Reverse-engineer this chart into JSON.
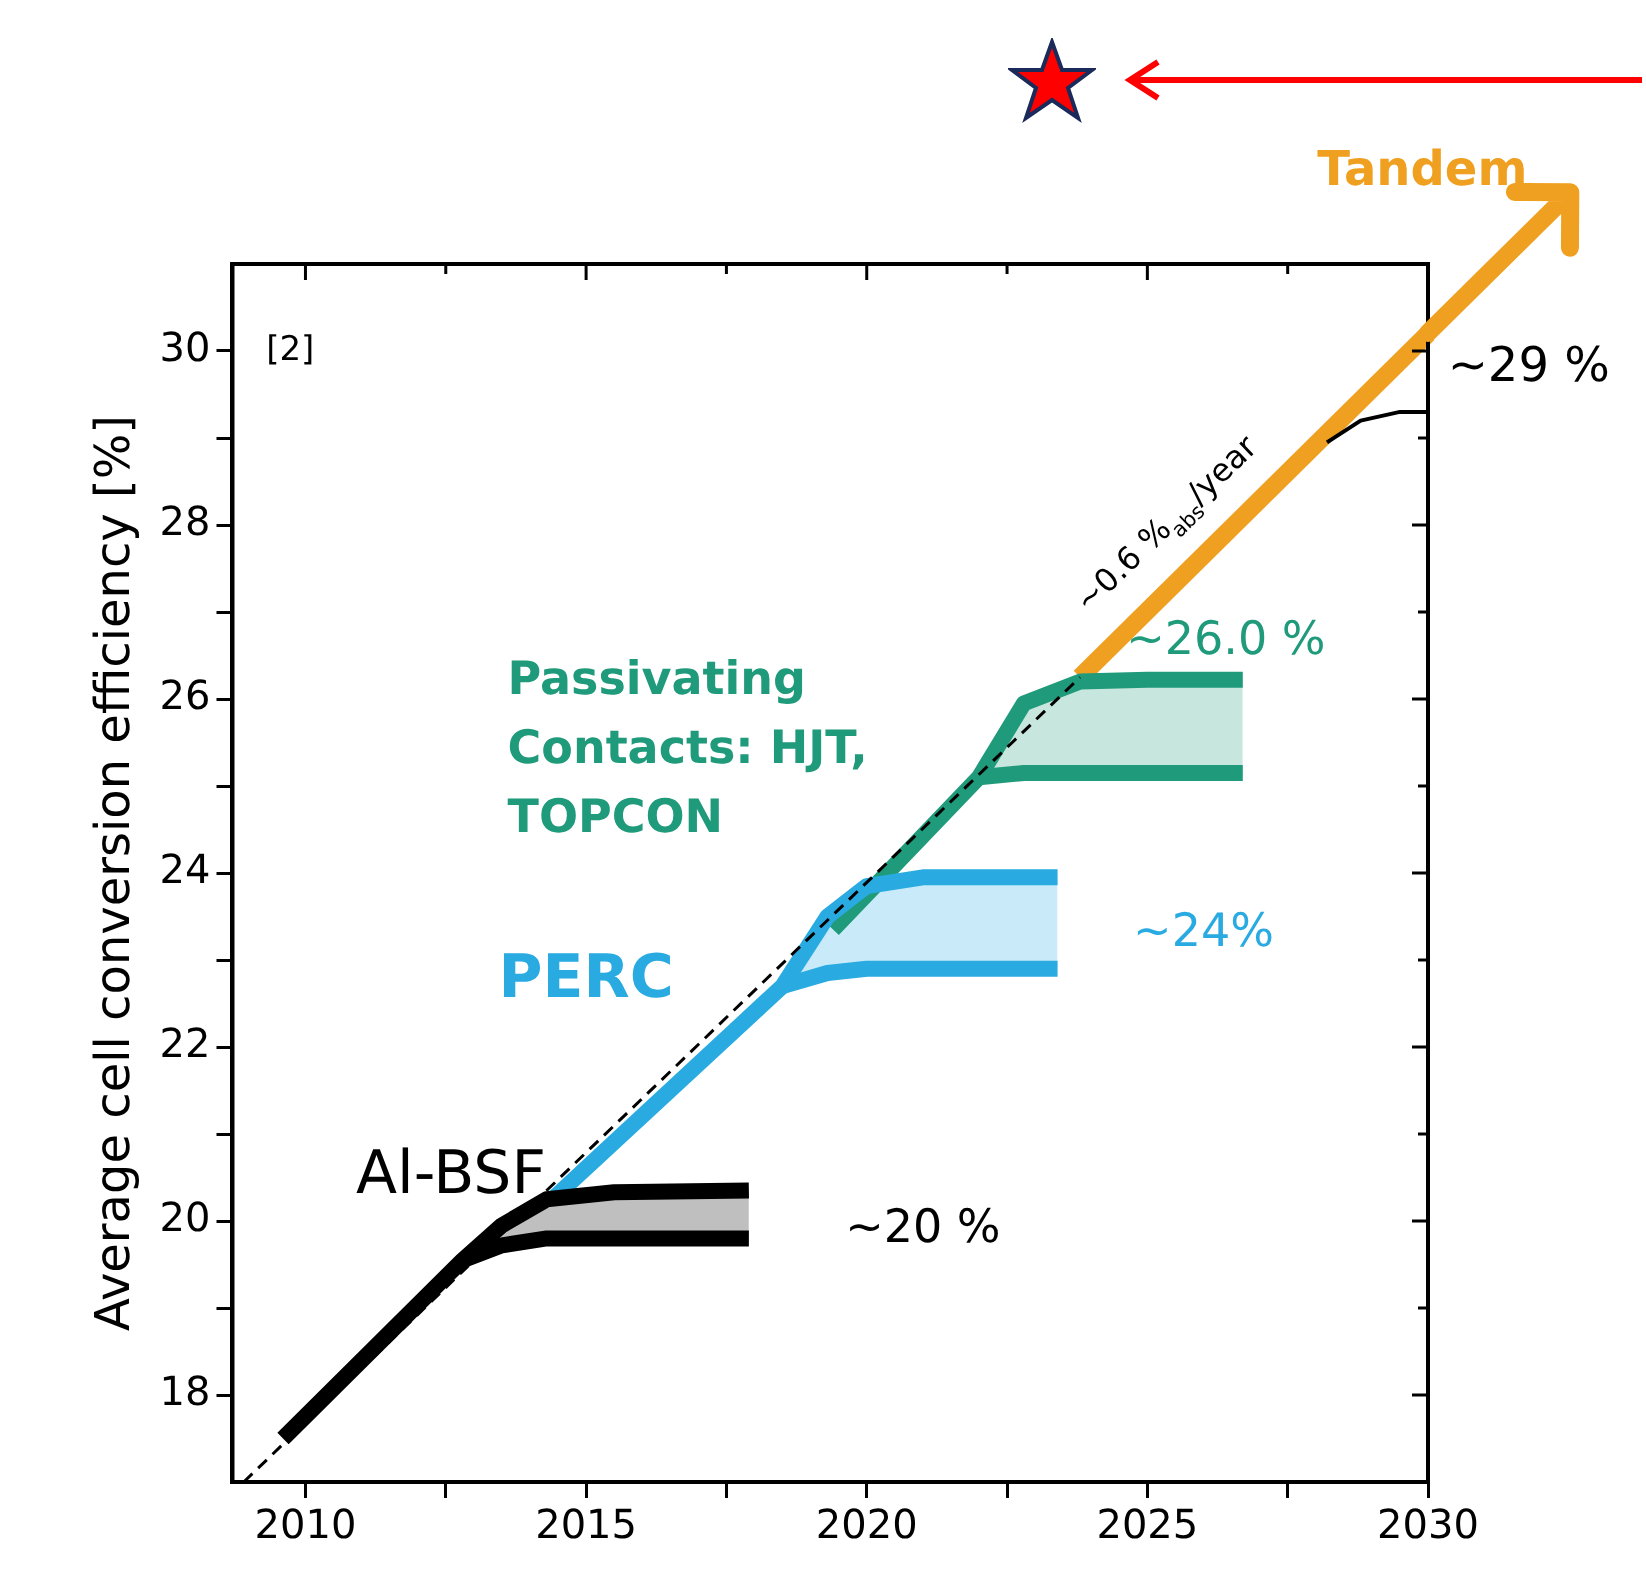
{
  "chart_data": {
    "type": "line",
    "ylabel": "Average cell conversion efficiency [%]",
    "xlim": [
      2008.7,
      2030
    ],
    "xticks": [
      2010,
      {
        "value": 2012.5,
        "label": null
      },
      2015,
      {
        "value": 2017.5,
        "label": null
      },
      2020,
      {
        "value": 2022.5,
        "label": null
      },
      2025,
      {
        "value": 2027.5,
        "label": null
      },
      2030
    ],
    "ylim": [
      17,
      31
    ],
    "yticks": [
      18,
      {
        "value": 19,
        "label": null
      },
      20,
      {
        "value": 21,
        "label": null
      },
      22,
      {
        "value": 23,
        "label": null
      },
      24,
      {
        "value": 25,
        "label": null
      },
      26,
      {
        "value": 27,
        "label": null
      },
      28,
      {
        "value": 29,
        "label": null
      },
      30
    ],
    "grid": false,
    "legend": false,
    "series": [
      {
        "name": "Al-BSF",
        "color": "#000000",
        "x": [
          2009.6,
          2012.8,
          2013.5,
          2014.3,
          2015.5,
          2017.9
        ],
        "values": [
          17.5,
          19.55,
          19.95,
          20.25,
          20.33,
          20.35
        ],
        "upper": [
          null,
          19.55,
          19.95,
          20.25,
          20.33,
          20.35
        ],
        "lower": [
          null,
          19.55,
          19.72,
          19.8,
          19.8,
          19.8
        ]
      },
      {
        "color": "#000000",
        "x": [
          2012.8,
          2013.5,
          2014.3,
          2015.5,
          2017.9
        ],
        "values": [
          19.55,
          19.72,
          19.8,
          19.8,
          19.8
        ]
      },
      {
        "name": "PERC",
        "color": "#29abe2",
        "x": [
          2014.4,
          2018.5,
          2019.3,
          2020.0,
          2021,
          2023.4
        ],
        "values": [
          20.25,
          22.7,
          23.5,
          23.85,
          23.95,
          23.95
        ],
        "upper": [
          null,
          22.7,
          23.5,
          23.85,
          23.95,
          23.95
        ],
        "lower": [
          null,
          22.7,
          22.85,
          22.9,
          22.9,
          22.9
        ]
      },
      {
        "color": "#29abe2",
        "x": [
          2018.5,
          2019.3,
          2020.0,
          2021,
          2023.4
        ],
        "values": [
          22.7,
          22.85,
          22.9,
          22.9,
          22.9
        ]
      },
      {
        "name": "Passivating Contacts: HJT, TOPCON",
        "color": "#1f9a7a",
        "x": [
          2019.4,
          2022.0,
          2022.8,
          2023.8,
          2025,
          2026.7
        ],
        "values": [
          23.35,
          25.1,
          25.95,
          26.2,
          26.22,
          26.22
        ],
        "upper": [
          null,
          25.1,
          25.95,
          26.2,
          26.22,
          26.22
        ],
        "lower": [
          null,
          25.1,
          25.15,
          25.15,
          25.15,
          25.15
        ]
      },
      {
        "color": "#1f9a7a",
        "x": [
          2022.0,
          2022.8,
          2023.8,
          2025,
          2026.7
        ],
        "values": [
          25.1,
          25.15,
          25.15,
          25.15,
          25.15
        ]
      },
      {
        "name": "Tandem",
        "color": "#f0a020",
        "x": [
          2023.8,
          2030
        ],
        "values": [
          26.25,
          30.2
        ]
      },
      {
        "color": "#000000",
        "line_style": "dashed",
        "x": [
          2008.9,
          2023.8
        ],
        "values": [
          17.0,
          26.25
        ]
      },
      {
        "color": "#000000",
        "x": [
          2028.2,
          2028.8,
          2029.5,
          2030
        ],
        "values": [
          28.95,
          29.2,
          29.3,
          29.3
        ]
      }
    ],
    "annotations": [
      "[2]",
      "~20 %",
      "~24%",
      "~26.0 %",
      "~29 %",
      "~0.6 %$_{abs}$/year"
    ]
  }
}
